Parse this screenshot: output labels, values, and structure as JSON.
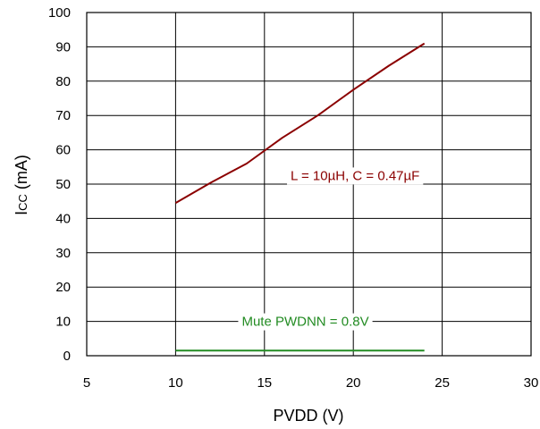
{
  "chart_data": {
    "type": "line",
    "xlabel": "PVDD (V)",
    "ylabel_main": "I",
    "ylabel_sub": "CC",
    "ylabel_unit": " (mA)",
    "xlim": [
      5,
      30
    ],
    "ylim": [
      0,
      100
    ],
    "xticks": [
      5,
      10,
      15,
      20,
      25,
      30
    ],
    "yticks": [
      0,
      10,
      20,
      30,
      40,
      50,
      60,
      70,
      80,
      90,
      100
    ],
    "grid": true,
    "series": [
      {
        "name": "L = 10µH, C = 0.47µF",
        "color": "#8b0000",
        "x": [
          10,
          12,
          14,
          16,
          18,
          20,
          22,
          24
        ],
        "y": [
          44.5,
          50.5,
          56,
          63.5,
          70,
          77.5,
          84.5,
          91
        ]
      },
      {
        "name": "Mute PWDNN = 0.8V",
        "color": "#228b22",
        "x": [
          10,
          24
        ],
        "y": [
          1.5,
          1.5
        ]
      }
    ],
    "annotations": [
      {
        "text": "L = 10µH, C = 0.47µF",
        "x": 20.1,
        "y": 52.5,
        "color": "#8b0000"
      },
      {
        "text": "Mute PWDNN = 0.8V",
        "x": 17.3,
        "y": 10,
        "color": "#228b22"
      }
    ]
  }
}
